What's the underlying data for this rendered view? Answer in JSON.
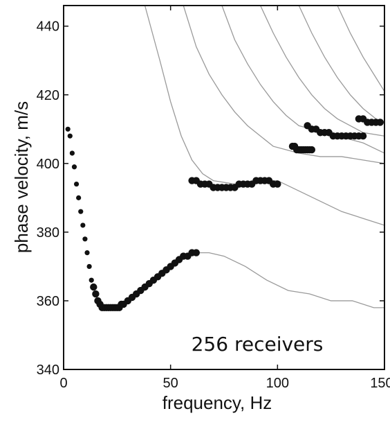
{
  "chart_data": {
    "type": "scatter",
    "title": "",
    "xlabel": "frequency, Hz",
    "ylabel": "phase velocity, m/s",
    "xlim": [
      0,
      150
    ],
    "ylim": [
      340,
      446
    ],
    "xticks": [
      0,
      50,
      100,
      150
    ],
    "yticks": [
      340,
      360,
      380,
      400,
      420,
      440
    ],
    "grid": false,
    "legend": "none",
    "annotation": "256 receivers",
    "colors": {
      "points": "#111111",
      "curves": "#9a9a9a",
      "axes": "#111111"
    },
    "series": [
      {
        "kind": "points",
        "x": [
          2,
          3,
          4,
          5,
          6,
          7,
          8,
          9,
          10,
          11,
          12,
          13,
          14,
          15,
          16,
          17,
          18,
          19,
          20,
          21,
          22,
          23,
          24,
          25,
          26,
          27,
          28,
          30,
          32,
          34,
          36,
          38,
          40,
          42,
          44,
          46,
          48,
          50,
          52,
          54,
          56,
          58,
          60,
          62
        ],
        "y": [
          410,
          408,
          403,
          399,
          394,
          390,
          386,
          382,
          378,
          374,
          370,
          366,
          364,
          362,
          360,
          359,
          358,
          358,
          358,
          358,
          358,
          358,
          358,
          358,
          358,
          359,
          359,
          360,
          361,
          362,
          363,
          364,
          365,
          366,
          367,
          368,
          369,
          370,
          371,
          372,
          373,
          373,
          374,
          374
        ]
      },
      {
        "kind": "points",
        "x": [
          60,
          62,
          64,
          66,
          68,
          70,
          72,
          74,
          76,
          78,
          80,
          82,
          84,
          86,
          88,
          90,
          92,
          94,
          96,
          98,
          100
        ],
        "y": [
          395,
          395,
          394,
          394,
          394,
          393,
          393,
          393,
          393,
          393,
          393,
          394,
          394,
          394,
          394,
          395,
          395,
          395,
          395,
          394,
          394
        ]
      },
      {
        "kind": "points",
        "x": [
          107,
          108,
          109,
          110,
          111,
          112,
          113,
          114,
          115,
          116
        ],
        "y": [
          405,
          405,
          404,
          404,
          404,
          404,
          404,
          404,
          404,
          404
        ]
      },
      {
        "kind": "points",
        "x": [
          114,
          116,
          118,
          120,
          122,
          124,
          126,
          128,
          130,
          132,
          134,
          136,
          138,
          140
        ],
        "y": [
          411,
          410,
          410,
          409,
          409,
          409,
          408,
          408,
          408,
          408,
          408,
          408,
          408,
          408
        ]
      },
      {
        "kind": "points",
        "x": [
          138,
          140,
          142,
          144,
          146,
          148
        ],
        "y": [
          413,
          413,
          412,
          412,
          412,
          412
        ]
      },
      {
        "kind": "curve",
        "x": [
          62,
          68,
          75,
          85,
          95,
          105,
          115,
          125,
          135,
          145,
          150
        ],
        "y": [
          374,
          374,
          373,
          370,
          366,
          363,
          362,
          360,
          360,
          358,
          358
        ]
      },
      {
        "kind": "curve",
        "x": [
          38,
          45,
          50,
          55,
          60,
          65,
          70,
          80,
          90,
          100,
          110,
          120,
          130,
          140,
          150
        ],
        "y": [
          446,
          430,
          418,
          408,
          401,
          397,
          395,
          394,
          395,
          395,
          392,
          389,
          386,
          384,
          382
        ]
      },
      {
        "kind": "curve",
        "x": [
          56,
          62,
          68,
          74,
          80,
          86,
          92,
          98,
          104,
          110,
          120,
          130,
          140,
          150
        ],
        "y": [
          446,
          434,
          426,
          420,
          415,
          411,
          408,
          405,
          404,
          403,
          402,
          402,
          401,
          400
        ]
      },
      {
        "kind": "curve",
        "x": [
          74,
          80,
          86,
          92,
          98,
          104,
          110,
          116,
          122,
          128,
          134,
          140,
          150
        ],
        "y": [
          446,
          436,
          429,
          423,
          418,
          414,
          411,
          410,
          409,
          408,
          407,
          406,
          403
        ]
      },
      {
        "kind": "curve",
        "x": [
          92,
          98,
          104,
          110,
          116,
          122,
          128,
          134,
          140,
          150
        ],
        "y": [
          446,
          438,
          431,
          425,
          420,
          416,
          413,
          411,
          409,
          408
        ]
      },
      {
        "kind": "curve",
        "x": [
          110,
          116,
          122,
          128,
          134,
          140,
          146,
          150
        ],
        "y": [
          446,
          438,
          431,
          425,
          420,
          416,
          413,
          412
        ]
      },
      {
        "kind": "curve",
        "x": [
          128,
          134,
          140,
          146,
          150
        ],
        "y": [
          446,
          438,
          431,
          425,
          421
        ]
      }
    ]
  }
}
